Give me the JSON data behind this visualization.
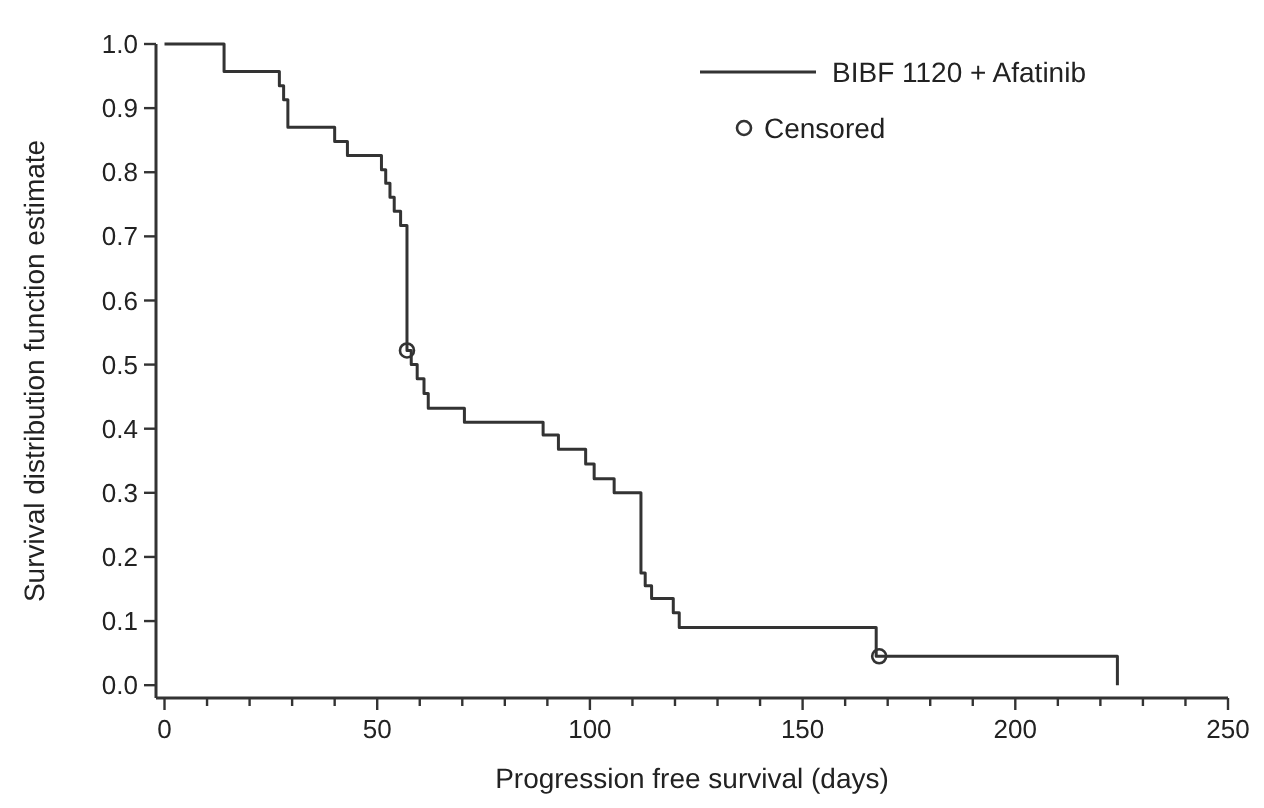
{
  "chart_data": {
    "type": "step",
    "xlabel": "Progression free survival (days)",
    "ylabel": "Survival distribution function estimate",
    "xlim": [
      -2,
      250
    ],
    "ylim": [
      -0.02,
      1.0
    ],
    "xticks": [
      0,
      {
        "value": 10,
        "label": null
      },
      {
        "value": 20,
        "label": null
      },
      {
        "value": 30,
        "label": null
      },
      {
        "value": 40,
        "label": null
      },
      50,
      {
        "value": 60,
        "label": null
      },
      {
        "value": 70,
        "label": null
      },
      {
        "value": 80,
        "label": null
      },
      {
        "value": 90,
        "label": null
      },
      100,
      {
        "value": 110,
        "label": null
      },
      {
        "value": 120,
        "label": null
      },
      {
        "value": 130,
        "label": null
      },
      {
        "value": 140,
        "label": null
      },
      150,
      {
        "value": 160,
        "label": null
      },
      {
        "value": 170,
        "label": null
      },
      {
        "value": 180,
        "label": null
      },
      {
        "value": 190,
        "label": null
      },
      200,
      {
        "value": 210,
        "label": null
      },
      {
        "value": 220,
        "label": null
      },
      {
        "value": 230,
        "label": null
      },
      {
        "value": 240,
        "label": null
      },
      250
    ],
    "yticks": [
      {
        "value": 0,
        "label": "0.0"
      },
      0.1,
      0.2,
      0.3,
      0.4,
      0.5,
      0.6,
      0.7,
      0.8,
      0.9,
      {
        "value": 1,
        "label": "1.0"
      }
    ],
    "grid": false,
    "legend": "top right",
    "series": [
      {
        "name": "BIBF 1120 + Afatinib",
        "color": "#333333",
        "x": [
          0,
          14,
          27,
          28,
          29,
          40,
          43,
          51,
          52,
          53,
          54,
          55.5,
          57,
          58,
          59.4,
          61,
          62,
          70.5,
          89,
          92.6,
          99,
          101,
          105.7,
          112,
          113,
          114.5,
          119.6,
          121,
          167.3,
          224
        ],
        "values": [
          1.0,
          0.957,
          0.935,
          0.913,
          0.87,
          0.848,
          0.826,
          0.804,
          0.783,
          0.761,
          0.739,
          0.717,
          0.522,
          0.5,
          0.478,
          0.455,
          0.432,
          0.41,
          0.39,
          0.368,
          0.345,
          0.322,
          0.3,
          0.175,
          0.155,
          0.135,
          0.113,
          0.09,
          0.045,
          0
        ]
      },
      {
        "name": "Censored",
        "type": "scatter",
        "color": "#333333",
        "marker": "circle",
        "x": [
          57,
          168
        ],
        "values": [
          0.522,
          0.045
        ]
      }
    ]
  }
}
